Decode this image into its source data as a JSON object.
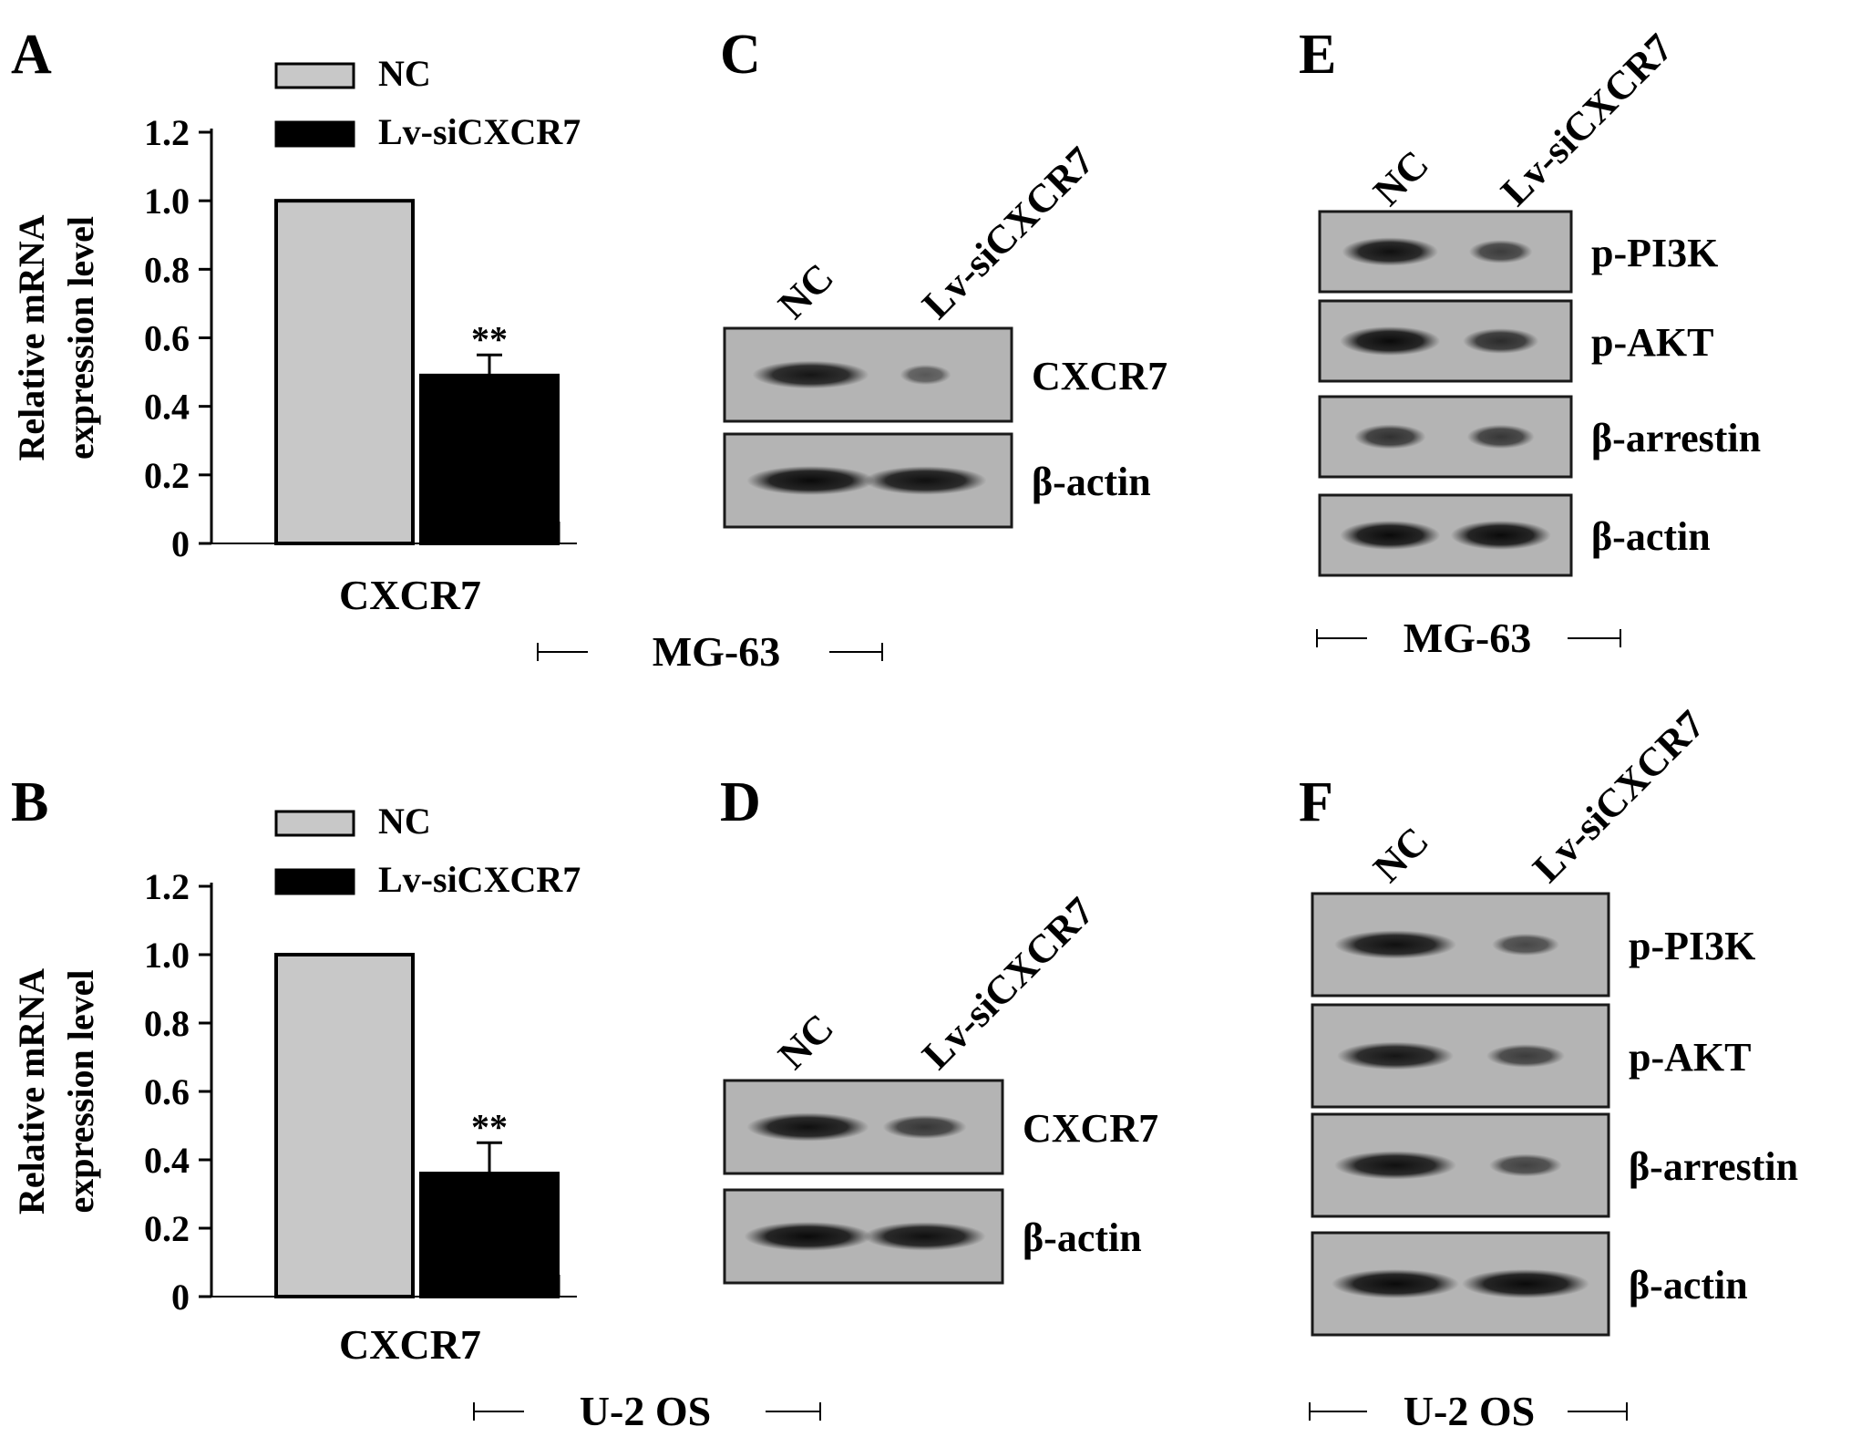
{
  "panel_letters": {
    "A": "A",
    "B": "B",
    "C": "C",
    "D": "D",
    "E": "E",
    "F": "F"
  },
  "cell_lines": {
    "mg63": "MG-63",
    "u2os": "U-2 OS"
  },
  "chart_data": [
    {
      "panel": "A",
      "type": "bar",
      "ylabel_line1": "Relative mRNA",
      "ylabel_line2": "expression level",
      "xlabel": "CXCR7",
      "ylim": [
        0,
        1.2
      ],
      "yticks": [
        "0",
        "0.2",
        "0.4",
        "0.6",
        "0.8",
        "1.0",
        "1.2"
      ],
      "series": [
        {
          "name": "NC",
          "value": 1.0,
          "error": 0,
          "color": "#c8c8c8"
        },
        {
          "name": "Lv-siCXCR7",
          "value": 0.49,
          "error": 0.06,
          "color": "#000000",
          "annotation": "**"
        }
      ],
      "legend": "top-left"
    },
    {
      "panel": "B",
      "type": "bar",
      "ylabel_line1": "Relative mRNA",
      "ylabel_line2": "expression level",
      "xlabel": "CXCR7",
      "ylim": [
        0,
        1.2
      ],
      "yticks": [
        "0",
        "0.2",
        "0.4",
        "0.6",
        "0.8",
        "1.0",
        "1.2"
      ],
      "series": [
        {
          "name": "NC",
          "value": 1.0,
          "error": 0,
          "color": "#c8c8c8"
        },
        {
          "name": "Lv-siCXCR7",
          "value": 0.36,
          "error": 0.09,
          "color": "#000000",
          "annotation": "**"
        }
      ],
      "legend": "top-left"
    }
  ],
  "blots": {
    "C": {
      "lanes": [
        "NC",
        "Lv-siCXCR7"
      ],
      "bands": [
        "CXCR7",
        "β-actin"
      ]
    },
    "D": {
      "lanes": [
        "NC",
        "Lv-siCXCR7"
      ],
      "bands": [
        "CXCR7",
        "β-actin"
      ]
    },
    "E": {
      "lanes": [
        "NC",
        "Lv-siCXCR7"
      ],
      "bands": [
        "p-PI3K",
        "p-AKT",
        "β-arrestin",
        "β-actin"
      ]
    },
    "F": {
      "lanes": [
        "NC",
        "Lv-siCXCR7"
      ],
      "bands": [
        "p-PI3K",
        "p-AKT",
        "β-arrestin",
        "β-actin"
      ]
    }
  },
  "colors": {
    "bar_nc": "#c8c8c8",
    "bar_si": "#000000",
    "blot_bg": "#b4b4b4",
    "band": "#1e1e1e"
  }
}
